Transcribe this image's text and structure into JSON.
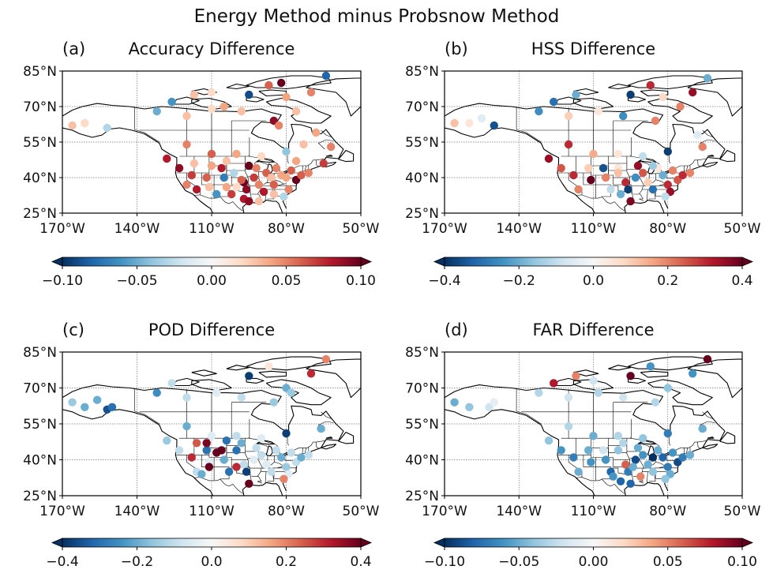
{
  "figure": {
    "title": "Energy Method minus Probsnow Method"
  },
  "colors": {
    "cmap": [
      "#053061",
      "#2166ac",
      "#4393c3",
      "#92c5de",
      "#d1e5f0",
      "#f7f7f7",
      "#fddbc7",
      "#f4a582",
      "#d6604d",
      "#b2182b",
      "#67001f"
    ]
  },
  "axes": {
    "lon_ticks": [
      -170,
      -140,
      -110,
      -80,
      -50
    ],
    "lon_labels": [
      "170°W",
      "140°W",
      "110°W",
      "80°W",
      "50°W"
    ],
    "lat_ticks": [
      25,
      40,
      55,
      70,
      85
    ],
    "lat_labels": [
      "25°N",
      "40°N",
      "55°N",
      "70°N",
      "85°N"
    ],
    "xlim": [
      -170,
      -50
    ],
    "ylim": [
      25,
      85
    ]
  },
  "chart_data": [
    {
      "type": "scatter",
      "label": "(a)",
      "title": "Accuracy Difference",
      "vmin": -0.1,
      "vmax": 0.1,
      "cbar_ticks": [
        -0.1,
        -0.05,
        0.0,
        0.05,
        0.1
      ],
      "cbar_labels": [
        "−0.10",
        "−0.05",
        "0.00",
        "0.05",
        "0.10"
      ],
      "points": [
        [
          -166,
          62,
          0.03
        ],
        [
          -161,
          63,
          0.02
        ],
        [
          -152,
          61,
          -0.03
        ],
        [
          -132,
          68,
          -0.05
        ],
        [
          -126,
          72,
          -0.06
        ],
        [
          -117,
          75,
          0.03
        ],
        [
          -110,
          76,
          0.02
        ],
        [
          -105,
          70,
          0.04
        ],
        [
          -95,
          75,
          -0.09
        ],
        [
          -87,
          79,
          0.06
        ],
        [
          -82,
          80,
          0.1
        ],
        [
          -64,
          83,
          -0.08
        ],
        [
          -80,
          74,
          0.04
        ],
        [
          -70,
          76,
          0.05
        ],
        [
          -76,
          68,
          0.03
        ],
        [
          -85,
          64,
          0.09
        ],
        [
          -83,
          62,
          0.05
        ],
        [
          -98,
          68,
          0.03
        ],
        [
          -110,
          69,
          0.02
        ],
        [
          -120,
          66,
          0.03
        ],
        [
          -68,
          59,
          0.04
        ],
        [
          -62,
          53,
          0.05
        ],
        [
          -65,
          46,
          0.07
        ],
        [
          -73,
          54,
          0.03
        ],
        [
          -80,
          51,
          -0.04
        ],
        [
          -90,
          49,
          0.02
        ],
        [
          -100,
          50,
          0.04
        ],
        [
          -110,
          50,
          0.06
        ],
        [
          -120,
          54,
          0.05
        ],
        [
          -128,
          48,
          0.08
        ],
        [
          -123,
          44,
          0.09
        ],
        [
          -117,
          46,
          0.03
        ],
        [
          -118,
          41,
          0.07
        ],
        [
          -120,
          37,
          0.05
        ],
        [
          -116,
          35,
          0.08
        ],
        [
          -112,
          40,
          0.06
        ],
        [
          -110,
          45,
          0.04
        ],
        [
          -111,
          36,
          0.03
        ],
        [
          -106,
          44,
          0.08
        ],
        [
          -105,
          40,
          -0.07
        ],
        [
          -104,
          36,
          0.04
        ],
        [
          -101,
          42,
          -0.03
        ],
        [
          -97,
          38,
          0.1
        ],
        [
          -96,
          35,
          0.09
        ],
        [
          -97,
          31,
          0.08
        ],
        [
          -95,
          45,
          0.1
        ],
        [
          -92,
          44,
          0.05
        ],
        [
          -93,
          40,
          0.07
        ],
        [
          -91,
          37,
          0.05
        ],
        [
          -88,
          42,
          0.06
        ],
        [
          -86,
          40,
          0.03
        ],
        [
          -89,
          34,
          0.08
        ],
        [
          -84,
          44,
          0.05
        ],
        [
          -82,
          41,
          0.04
        ],
        [
          -85,
          37,
          0.06
        ],
        [
          -85,
          33,
          0.03
        ],
        [
          -80,
          40,
          0.04
        ],
        [
          -78,
          43,
          0.06
        ],
        [
          -76,
          39,
          0.1
        ],
        [
          -74,
          41,
          0.06
        ],
        [
          -71,
          42,
          0.05
        ],
        [
          -79,
          35,
          0.05
        ],
        [
          -81,
          32,
          -0.03
        ],
        [
          -102,
          33,
          0.07
        ],
        [
          -95,
          30,
          0.09
        ],
        [
          -98,
          39,
          0.06
        ],
        [
          -91,
          30,
          0.03
        ],
        [
          -76,
          47,
          0.04
        ],
        [
          -104,
          47,
          0.03
        ],
        [
          -108,
          33,
          -0.06
        ],
        [
          -100,
          36,
          0.02
        ]
      ]
    },
    {
      "type": "scatter",
      "label": "(b)",
      "title": "HSS Difference",
      "vmin": -0.4,
      "vmax": 0.4,
      "cbar_ticks": [
        -0.4,
        -0.2,
        0.0,
        0.2,
        0.4
      ],
      "cbar_labels": [
        "−0.4",
        "−0.2",
        "0.0",
        "0.2",
        "0.4"
      ],
      "points": [
        [
          -166,
          63,
          0.12
        ],
        [
          -160,
          63,
          0.05
        ],
        [
          -155,
          65,
          -0.05
        ],
        [
          -150,
          62,
          -0.35
        ],
        [
          -132,
          68,
          -0.25
        ],
        [
          -126,
          72,
          -0.3
        ],
        [
          -117,
          75,
          -0.2
        ],
        [
          -95,
          75,
          -0.38
        ],
        [
          -87,
          79,
          0.3
        ],
        [
          -64,
          82,
          -0.2
        ],
        [
          -70,
          76,
          0.35
        ],
        [
          -82,
          74,
          0.08
        ],
        [
          -75,
          70,
          0.2
        ],
        [
          -85,
          64,
          0.2
        ],
        [
          -98,
          66,
          -0.25
        ],
        [
          -108,
          68,
          0.05
        ],
        [
          -120,
          66,
          0.1
        ],
        [
          -68,
          58,
          -0.05
        ],
        [
          -66,
          53,
          0.2
        ],
        [
          -80,
          51,
          -0.38
        ],
        [
          -90,
          49,
          -0.1
        ],
        [
          -100,
          50,
          0.05
        ],
        [
          -110,
          50,
          0.15
        ],
        [
          -120,
          54,
          0.3
        ],
        [
          -128,
          48,
          0.35
        ],
        [
          -123,
          44,
          0.25
        ],
        [
          -118,
          41,
          0.3
        ],
        [
          -116,
          35,
          0.2
        ],
        [
          -111,
          39,
          0.4
        ],
        [
          -112,
          44,
          0.1
        ],
        [
          -106,
          44,
          -0.35
        ],
        [
          -105,
          40,
          0.2
        ],
        [
          -103,
          35,
          -0.1
        ],
        [
          -100,
          44,
          0.05
        ],
        [
          -97,
          38,
          0.3
        ],
        [
          -96,
          35,
          -0.38
        ],
        [
          -95,
          30,
          0.38
        ],
        [
          -93,
          40,
          -0.25
        ],
        [
          -92,
          45,
          0.35
        ],
        [
          -90,
          42,
          0.25
        ],
        [
          -88,
          38,
          0.1
        ],
        [
          -86,
          35,
          -0.3
        ],
        [
          -84,
          44,
          0.05
        ],
        [
          -82,
          41,
          -0.2
        ],
        [
          -80,
          37,
          0.3
        ],
        [
          -78,
          43,
          0.2
        ],
        [
          -76,
          39,
          0.25
        ],
        [
          -74,
          41,
          0.3
        ],
        [
          -71,
          42,
          0.2
        ],
        [
          -79,
          34,
          0.35
        ],
        [
          -81,
          32,
          -0.1
        ],
        [
          -100,
          42,
          0.12
        ],
        [
          -99,
          33,
          -0.2
        ],
        [
          -86,
          45,
          -0.15
        ]
      ]
    },
    {
      "type": "scatter",
      "label": "(c)",
      "title": "POD Difference",
      "vmin": -0.4,
      "vmax": 0.4,
      "cbar_ticks": [
        -0.4,
        -0.2,
        0.0,
        0.2,
        0.4
      ],
      "cbar_labels": [
        "−0.4",
        "−0.2",
        "0.0",
        "0.2",
        "0.4"
      ],
      "points": [
        [
          -166,
          64,
          -0.15
        ],
        [
          -161,
          62,
          -0.2
        ],
        [
          -156,
          65,
          -0.2
        ],
        [
          -152,
          61,
          -0.35
        ],
        [
          -150,
          62,
          -0.3
        ],
        [
          -132,
          68,
          -0.25
        ],
        [
          -126,
          72,
          -0.1
        ],
        [
          -95,
          75,
          -0.38
        ],
        [
          -87,
          79,
          0.05
        ],
        [
          -64,
          82,
          0.2
        ],
        [
          -70,
          76,
          0.3
        ],
        [
          -80,
          70,
          -0.2
        ],
        [
          -78,
          68,
          -0.15
        ],
        [
          -85,
          64,
          -0.15
        ],
        [
          -98,
          66,
          -0.1
        ],
        [
          -108,
          68,
          -0.05
        ],
        [
          -120,
          66,
          -0.1
        ],
        [
          -66,
          53,
          -0.2
        ],
        [
          -80,
          51,
          -0.38
        ],
        [
          -90,
          49,
          -0.05
        ],
        [
          -100,
          50,
          -0.1
        ],
        [
          -110,
          50,
          -0.05
        ],
        [
          -120,
          54,
          -0.2
        ],
        [
          -128,
          48,
          -0.15
        ],
        [
          -123,
          44,
          -0.1
        ],
        [
          -118,
          41,
          0.3
        ],
        [
          -116,
          35,
          -0.1
        ],
        [
          -111,
          39,
          -0.05
        ],
        [
          -112,
          44,
          -0.3
        ],
        [
          -106,
          44,
          0.4
        ],
        [
          -105,
          40,
          -0.2
        ],
        [
          -103,
          35,
          -0.3
        ],
        [
          -100,
          44,
          -0.3
        ],
        [
          -97,
          38,
          -0.1
        ],
        [
          -96,
          35,
          -0.38
        ],
        [
          -95,
          30,
          0.4
        ],
        [
          -93,
          40,
          -0.05
        ],
        [
          -92,
          45,
          -0.1
        ],
        [
          -90,
          42,
          -0.1
        ],
        [
          -88,
          38,
          -0.05
        ],
        [
          -86,
          35,
          -0.1
        ],
        [
          -84,
          44,
          -0.1
        ],
        [
          -82,
          41,
          -0.2
        ],
        [
          -80,
          37,
          -0.15
        ],
        [
          -78,
          43,
          -0.1
        ],
        [
          -76,
          39,
          -0.1
        ],
        [
          -74,
          41,
          -0.2
        ],
        [
          -71,
          42,
          -0.1
        ],
        [
          -79,
          34,
          -0.05
        ],
        [
          -81,
          32,
          0.2
        ],
        [
          -112,
          47,
          0.38
        ],
        [
          -108,
          43,
          0.4
        ],
        [
          -104,
          48,
          -0.3
        ],
        [
          -100,
          37,
          0.3
        ],
        [
          -98,
          47,
          -0.2
        ],
        [
          -116,
          47,
          0.25
        ],
        [
          -111,
          37,
          0.4
        ],
        [
          -114,
          34,
          -0.2
        ]
      ]
    },
    {
      "type": "scatter",
      "label": "(d)",
      "title": "FAR Difference",
      "vmin": -0.1,
      "vmax": 0.1,
      "cbar_ticks": [
        -0.1,
        -0.05,
        0.0,
        0.05,
        0.1
      ],
      "cbar_labels": [
        "−0.10",
        "−0.05",
        "0.00",
        "0.05",
        "0.10"
      ],
      "points": [
        [
          -166,
          64,
          -0.05
        ],
        [
          -160,
          62,
          -0.04
        ],
        [
          -152,
          62,
          -0.02
        ],
        [
          -150,
          64,
          -0.01
        ],
        [
          -132,
          68,
          -0.03
        ],
        [
          -126,
          72,
          0.08
        ],
        [
          -117,
          75,
          0.05
        ],
        [
          -110,
          73,
          -0.02
        ],
        [
          -95,
          75,
          0.1
        ],
        [
          -87,
          79,
          -0.06
        ],
        [
          -64,
          82,
          0.1
        ],
        [
          -70,
          76,
          -0.06
        ],
        [
          -80,
          70,
          -0.04
        ],
        [
          -85,
          64,
          -0.03
        ],
        [
          -98,
          66,
          -0.02
        ],
        [
          -108,
          68,
          -0.03
        ],
        [
          -120,
          66,
          -0.02
        ],
        [
          -66,
          53,
          -0.05
        ],
        [
          -80,
          51,
          -0.07
        ],
        [
          -90,
          49,
          -0.04
        ],
        [
          -100,
          50,
          -0.03
        ],
        [
          -110,
          50,
          -0.05
        ],
        [
          -120,
          54,
          -0.03
        ],
        [
          -128,
          48,
          -0.04
        ],
        [
          -123,
          44,
          -0.06
        ],
        [
          -118,
          41,
          -0.07
        ],
        [
          -116,
          35,
          -0.05
        ],
        [
          -111,
          39,
          -0.06
        ],
        [
          -112,
          44,
          -0.05
        ],
        [
          -106,
          44,
          -0.02
        ],
        [
          -105,
          40,
          -0.06
        ],
        [
          -103,
          35,
          -0.08
        ],
        [
          -100,
          44,
          -0.04
        ],
        [
          -97,
          38,
          0.06
        ],
        [
          -96,
          35,
          -0.07
        ],
        [
          -95,
          30,
          -0.08
        ],
        [
          -93,
          40,
          -0.09
        ],
        [
          -92,
          45,
          -0.05
        ],
        [
          -90,
          42,
          -0.06
        ],
        [
          -88,
          38,
          -0.05
        ],
        [
          -86,
          35,
          -0.04
        ],
        [
          -84,
          44,
          -0.05
        ],
        [
          -82,
          41,
          -0.08
        ],
        [
          -80,
          37,
          -0.07
        ],
        [
          -78,
          43,
          -0.06
        ],
        [
          -76,
          39,
          -0.09
        ],
        [
          -74,
          41,
          -0.07
        ],
        [
          -71,
          42,
          -0.05
        ],
        [
          -79,
          34,
          -0.05
        ],
        [
          -81,
          32,
          -0.04
        ],
        [
          -91,
          33,
          0.05
        ],
        [
          -99,
          31,
          -0.08
        ],
        [
          -102,
          33,
          -0.06
        ],
        [
          -94,
          37,
          -0.05
        ],
        [
          -86,
          41,
          -0.1
        ],
        [
          -98,
          47,
          -0.03
        ]
      ]
    }
  ]
}
